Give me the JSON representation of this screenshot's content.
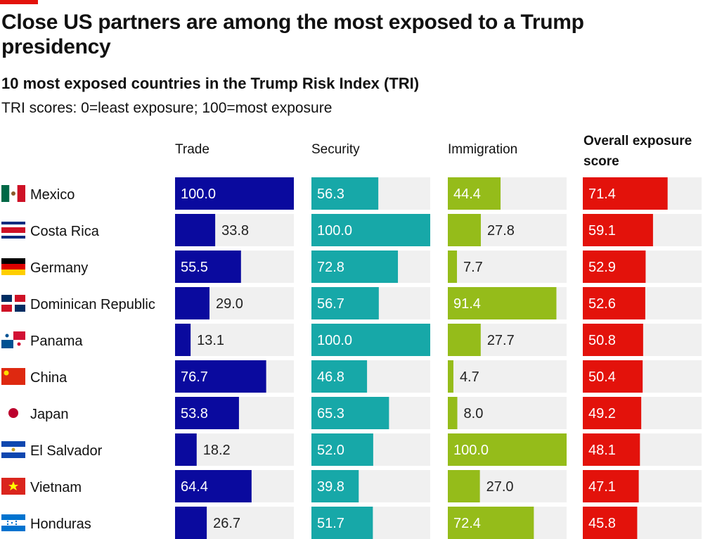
{
  "title": "Close US partners are among the most exposed to a Trump presidency",
  "subtitle": "10 most exposed countries in the Trump Risk Index (TRI)",
  "note": "TRI scores: 0=least exposure; 100=most exposure",
  "chart_data": {
    "type": "bar",
    "orientation": "horizontal",
    "xlim": [
      0,
      100
    ],
    "categories": [
      "Mexico",
      "Costa Rica",
      "Germany",
      "Dominican Republic",
      "Panama",
      "China",
      "Japan",
      "El Salvador",
      "Vietnam",
      "Honduras"
    ],
    "series": [
      {
        "name": "Trade",
        "color": "#0a0a9e",
        "values": [
          100.0,
          33.8,
          55.5,
          29.0,
          13.1,
          76.7,
          53.8,
          18.2,
          64.4,
          26.7
        ]
      },
      {
        "name": "Security",
        "color": "#17a8a8",
        "values": [
          56.3,
          100.0,
          72.8,
          56.7,
          100.0,
          46.8,
          65.3,
          52.0,
          39.8,
          51.7
        ]
      },
      {
        "name": "Immigration",
        "color": "#95bc1a",
        "values": [
          44.4,
          27.8,
          7.7,
          91.4,
          27.7,
          4.7,
          8.0,
          100.0,
          27.0,
          72.4
        ]
      },
      {
        "name": "Overall exposure score",
        "color": "#e3120b",
        "values": [
          71.4,
          59.1,
          52.9,
          52.6,
          50.8,
          50.4,
          49.2,
          48.1,
          47.1,
          45.8
        ]
      }
    ],
    "track_color": "#f0f0f0",
    "flags": [
      "mexico",
      "costa-rica",
      "germany",
      "dominican-republic",
      "panama",
      "china",
      "japan",
      "el-salvador",
      "vietnam",
      "honduras"
    ]
  }
}
